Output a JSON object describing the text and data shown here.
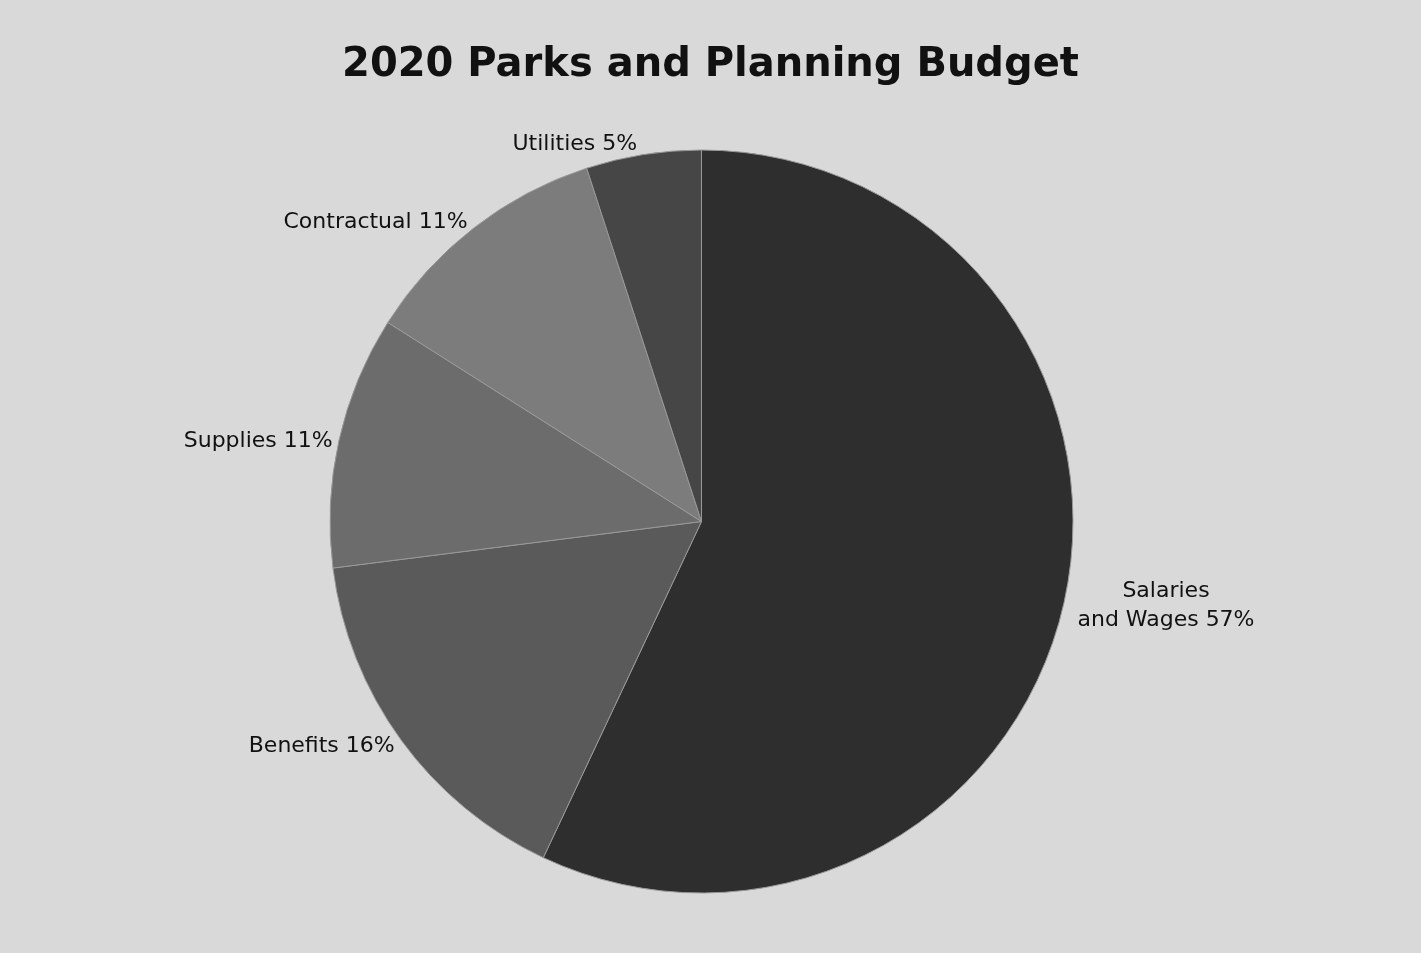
{
  "chart_data": {
    "type": "pie",
    "title": "2020 Parks and Planning Budget",
    "categories": [
      "Salaries and Wages",
      "Benefits",
      "Supplies",
      "Contractual",
      "Utilities"
    ],
    "values": [
      57,
      16,
      11,
      11,
      5
    ],
    "value_labels": [
      "57%",
      "16%",
      "11%",
      "11%",
      "5%"
    ],
    "colors": [
      "#2e2e2e",
      "#5a5a5a",
      "#6c6c6c",
      "#7c7c7c",
      "#464646"
    ],
    "legend": false
  }
}
